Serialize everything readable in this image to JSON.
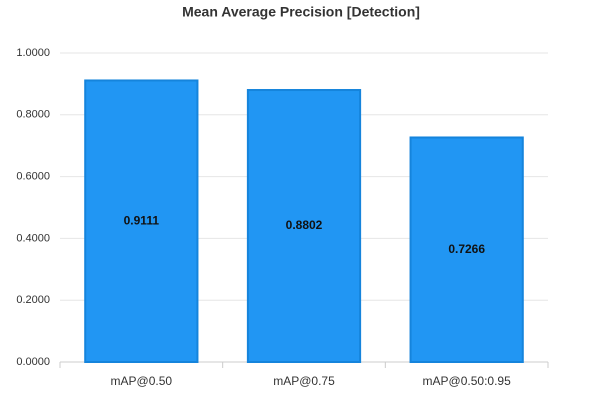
{
  "chart_data": {
    "type": "bar",
    "title": "Mean Average Precision [Detection]",
    "categories": [
      "mAP@0.50",
      "mAP@0.75",
      "mAP@0.50:0.95"
    ],
    "values": [
      0.9111,
      0.8802,
      0.7266
    ],
    "color": "#2196f3",
    "ylim": [
      0,
      1
    ],
    "yticks": [
      {
        "value": 0,
        "label": "0.0000"
      },
      {
        "value": 0.2,
        "label": "0.2000"
      },
      {
        "value": 0.4,
        "label": "0.4000"
      },
      {
        "value": 0.6,
        "label": "0.6000"
      },
      {
        "value": 0.8,
        "label": "0.8000"
      },
      {
        "value": 1,
        "label": "1.0000"
      }
    ],
    "grid": true
  }
}
